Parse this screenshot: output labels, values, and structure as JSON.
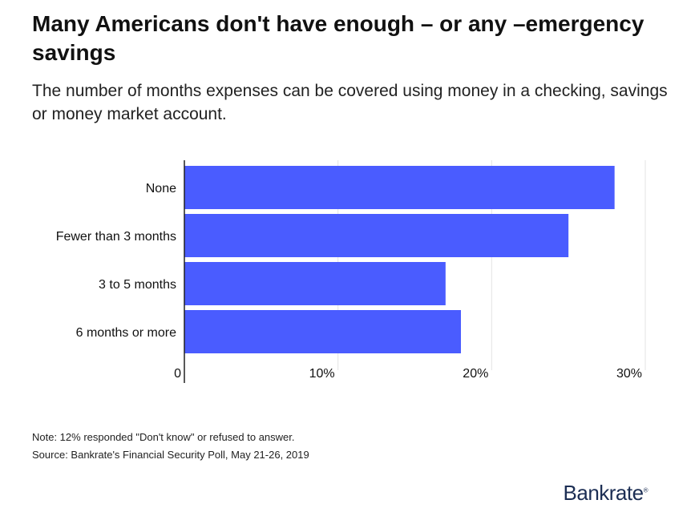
{
  "title": "Many Americans don't have enough – or any –emergency savings",
  "subtitle": "The number of months expenses can be covered using money in a checking, savings or money market account.",
  "notes": {
    "note": "Note: 12% responded \"Don't know\" or refused to answer.",
    "source": "Source: Bankrate's Financial Security Poll, May 21-26, 2019"
  },
  "logo": {
    "text": "Bankrate",
    "mark": "®"
  },
  "colors": {
    "bar": "#4a5cff",
    "grid": "#e3e3e3",
    "axis": "#222222"
  },
  "chart_data": {
    "type": "bar",
    "orientation": "horizontal",
    "categories": [
      "None",
      "Fewer than 3 months",
      "3 to 5 months",
      "6 months or more"
    ],
    "values": [
      28,
      25,
      17,
      18
    ],
    "unit": "%",
    "xlim": [
      0,
      30
    ],
    "xticks": [
      0,
      10,
      20,
      30
    ],
    "xtick_labels": [
      "0",
      "10%",
      "20%",
      "30%"
    ],
    "grid": true,
    "legend": "none"
  }
}
